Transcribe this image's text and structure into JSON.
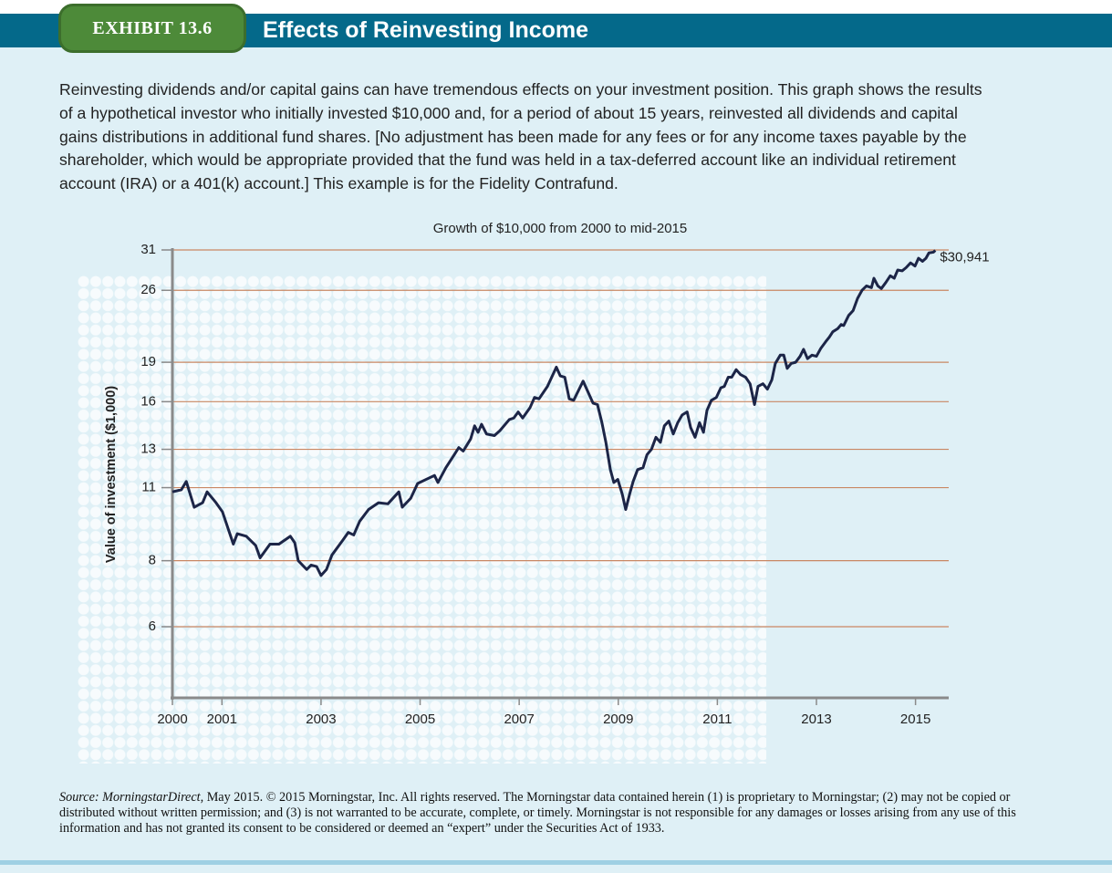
{
  "header": {
    "exhibit": "EXHIBIT 13.6",
    "title": "Effects of Reinvesting Income"
  },
  "intro": "Reinvesting dividends and/or capital gains can have tremendous effects on your investment position. This graph shows the results of a hypothetical investor who initially invested $10,000 and, for a period of about 15 years, reinvested all dividends and capital gains distributions in additional fund shares. [No adjustment has been made for any fees or for any income taxes payable by the shareholder, which would be appropriate provided that the fund was held in a tax-deferred account like an individual retirement account (IRA) or a 401(k) account.] This example is for the Fidelity Contrafund.",
  "chart_data": {
    "type": "line",
    "title": "Growth of $10,000 from 2000 to mid-2015",
    "y_label": "Value of investment ($1,000)",
    "log_scale": true,
    "grid": true,
    "color": "#1c2547",
    "grid_color": "#c98763",
    "xlim": [
      2000,
      2015.67
    ],
    "xticks": [
      2000,
      2001,
      2003,
      2005,
      2007,
      2009,
      2011,
      2013,
      2015
    ],
    "ylim": [
      4.4,
      31
    ],
    "yticks": [
      6,
      8,
      11,
      13,
      16,
      19,
      26,
      31
    ],
    "x": [
      2000.0,
      2000.18,
      2000.28,
      2000.44,
      2000.61,
      2000.7,
      2000.88,
      2001.01,
      2001.23,
      2001.31,
      2001.49,
      2001.68,
      2001.77,
      2001.97,
      2002.15,
      2002.38,
      2002.47,
      2002.54,
      2002.71,
      2002.8,
      2002.91,
      2003.0,
      2003.11,
      2003.22,
      2003.44,
      2003.55,
      2003.66,
      2003.78,
      2003.96,
      2004.16,
      2004.35,
      2004.57,
      2004.64,
      2004.81,
      2004.95,
      2005.12,
      2005.29,
      2005.36,
      2005.52,
      2005.69,
      2005.78,
      2005.87,
      2006.02,
      2006.1,
      2006.17,
      2006.24,
      2006.34,
      2006.5,
      2006.61,
      2006.8,
      2006.89,
      2006.98,
      2007.07,
      2007.22,
      2007.31,
      2007.4,
      2007.57,
      2007.75,
      2007.83,
      2007.92,
      2008.01,
      2008.1,
      2008.29,
      2008.49,
      2008.58,
      2008.67,
      2008.75,
      2008.84,
      2008.91,
      2008.99,
      2009.08,
      2009.15,
      2009.23,
      2009.3,
      2009.39,
      2009.5,
      2009.58,
      2009.67,
      2009.76,
      2009.85,
      2009.93,
      2010.02,
      2010.11,
      2010.2,
      2010.29,
      2010.39,
      2010.46,
      2010.55,
      2010.64,
      2010.72,
      2010.79,
      2010.88,
      2010.98,
      2011.07,
      2011.14,
      2011.22,
      2011.29,
      2011.38,
      2011.47,
      2011.57,
      2011.66,
      2011.75,
      2011.82,
      2011.92,
      2012.01,
      2012.1,
      2012.17,
      2012.27,
      2012.34,
      2012.41,
      2012.49,
      2012.58,
      2012.67,
      2012.74,
      2012.82,
      2012.91,
      2013.0,
      2013.09,
      2013.19,
      2013.26,
      2013.33,
      2013.43,
      2013.5,
      2013.55,
      2013.65,
      2013.74,
      2013.83,
      2013.92,
      2014.01,
      2014.11,
      2014.16,
      2014.24,
      2014.31,
      2014.4,
      2014.49,
      2014.57,
      2014.64,
      2014.73,
      2014.81,
      2014.9,
      2014.99,
      2015.06,
      2015.14,
      2015.21,
      2015.27,
      2015.36,
      2015.4
    ],
    "values": [
      10.8,
      10.9,
      11.3,
      10.1,
      10.3,
      10.8,
      10.3,
      9.9,
      8.6,
      9.0,
      8.9,
      8.55,
      8.1,
      8.6,
      8.6,
      8.9,
      8.65,
      8.0,
      7.7,
      7.85,
      7.8,
      7.5,
      7.7,
      8.2,
      8.75,
      9.05,
      8.95,
      9.5,
      10.0,
      10.3,
      10.25,
      10.8,
      10.1,
      10.5,
      11.2,
      11.4,
      11.6,
      11.25,
      12.0,
      12.7,
      13.1,
      12.9,
      13.6,
      14.4,
      14.0,
      14.5,
      13.9,
      13.8,
      14.1,
      14.8,
      14.9,
      15.3,
      14.9,
      15.6,
      16.3,
      16.2,
      17.1,
      18.6,
      17.9,
      17.8,
      16.2,
      16.1,
      17.5,
      15.9,
      15.8,
      14.6,
      13.4,
      11.9,
      11.25,
      11.4,
      10.7,
      10.0,
      10.7,
      11.3,
      11.9,
      12.0,
      12.7,
      13.0,
      13.7,
      13.4,
      14.4,
      14.7,
      13.9,
      14.6,
      15.1,
      15.3,
      14.3,
      13.7,
      14.6,
      14.0,
      15.4,
      16.1,
      16.3,
      17.0,
      17.1,
      17.8,
      17.8,
      18.4,
      18.0,
      17.8,
      17.3,
      15.8,
      17.1,
      17.3,
      16.9,
      17.6,
      18.9,
      19.6,
      19.6,
      18.5,
      18.9,
      19.0,
      19.5,
      20.1,
      19.3,
      19.6,
      19.5,
      20.2,
      20.8,
      21.2,
      21.7,
      22.0,
      22.4,
      22.3,
      23.3,
      23.8,
      25.1,
      26.0,
      26.5,
      26.3,
      27.4,
      26.5,
      26.2,
      26.9,
      27.7,
      27.4,
      28.4,
      28.3,
      28.7,
      29.3,
      28.9,
      29.9,
      29.5,
      29.9,
      30.6,
      30.7,
      30.941
    ],
    "annotation": "$30,941"
  },
  "source": {
    "label": "Source: MorningstarDirect,",
    "text": " May 2015. © 2015 Morningstar, Inc. All rights reserved. The Morningstar data contained herein (1) is proprietary to Morningstar; (2) may not be copied or distributed without written permission; and (3) is not warranted to be accurate, complete, or timely. Morningstar is not responsible for any damages or losses arising from any use of this information and has not granted its consent to be considered or deemed an “expert” under the Securities Act of 1933."
  }
}
